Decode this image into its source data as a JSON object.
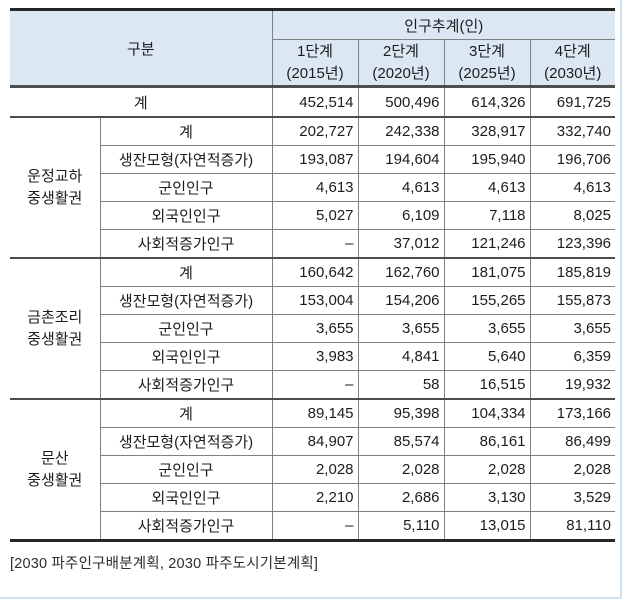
{
  "page": {
    "footer_note": "[2030 파주인구배분계획, 2030 파주도시기본계획]"
  },
  "colors": {
    "header_bg": "#dbe8f4",
    "border_heavy": "#262626",
    "border_medium": "#4d4d4d",
    "border_light": "#808080",
    "page_edge": "#cfe2f3"
  },
  "table": {
    "header": {
      "category": "구분",
      "projection": "인구추계(인)",
      "stages": [
        {
          "line1": "1단계",
          "line2": "(2015년)"
        },
        {
          "line1": "2단계",
          "line2": "(2020년)"
        },
        {
          "line1": "3단계",
          "line2": "(2025년)"
        },
        {
          "line1": "4단계",
          "line2": "(2030년)"
        }
      ]
    },
    "total_row": {
      "label": "계",
      "values": [
        "452,514",
        "500,496",
        "614,326",
        "691,725"
      ]
    },
    "groups": [
      {
        "name_lines": [
          "운정교하",
          "중생활권"
        ],
        "rows": [
          {
            "label": "계",
            "values": [
              "202,727",
              "242,338",
              "328,917",
              "332,740"
            ]
          },
          {
            "label": "생잔모형(자연적증가)",
            "values": [
              "193,087",
              "194,604",
              "195,940",
              "196,706"
            ]
          },
          {
            "label": "군인인구",
            "values": [
              "4,613",
              "4,613",
              "4,613",
              "4,613"
            ]
          },
          {
            "label": "외국인인구",
            "values": [
              "5,027",
              "6,109",
              "7,118",
              "8,025"
            ]
          },
          {
            "label": "사회적증가인구",
            "values": [
              "–",
              "37,012",
              "121,246",
              "123,396"
            ]
          }
        ]
      },
      {
        "name_lines": [
          "금촌조리",
          "중생활권"
        ],
        "rows": [
          {
            "label": "계",
            "values": [
              "160,642",
              "162,760",
              "181,075",
              "185,819"
            ]
          },
          {
            "label": "생잔모형(자연적증가)",
            "values": [
              "153,004",
              "154,206",
              "155,265",
              "155,873"
            ]
          },
          {
            "label": "군인인구",
            "values": [
              "3,655",
              "3,655",
              "3,655",
              "3,655"
            ]
          },
          {
            "label": "외국인인구",
            "values": [
              "3,983",
              "4,841",
              "5,640",
              "6,359"
            ]
          },
          {
            "label": "사회적증가인구",
            "values": [
              "–",
              "58",
              "16,515",
              "19,932"
            ]
          }
        ]
      },
      {
        "name_lines": [
          "문산",
          "중생활권"
        ],
        "rows": [
          {
            "label": "계",
            "values": [
              "89,145",
              "95,398",
              "104,334",
              "173,166"
            ]
          },
          {
            "label": "생잔모형(자연적증가)",
            "values": [
              "84,907",
              "85,574",
              "86,161",
              "86,499"
            ]
          },
          {
            "label": "군인인구",
            "values": [
              "2,028",
              "2,028",
              "2,028",
              "2,028"
            ]
          },
          {
            "label": "외국인인구",
            "values": [
              "2,210",
              "2,686",
              "3,130",
              "3,529"
            ]
          },
          {
            "label": "사회적증가인구",
            "values": [
              "–",
              "5,110",
              "13,015",
              "81,110"
            ]
          }
        ]
      }
    ]
  }
}
